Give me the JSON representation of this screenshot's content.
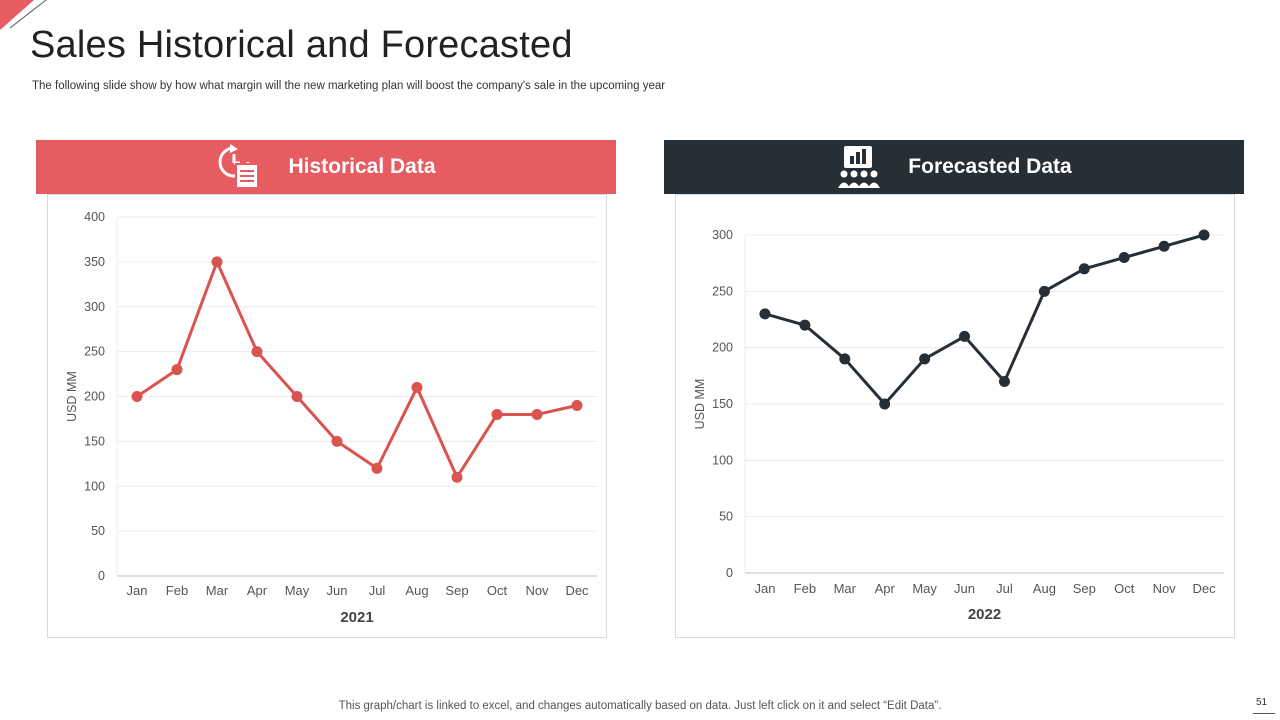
{
  "title": "Sales Historical and Forecasted",
  "subtitle": "The following slide show by how what margin will the new marketing plan will boost the company's sale in the upcoming year",
  "footer": "This graph/chart is linked to excel,  and changes automatically based on data. Just left click on it and select “Edit Data”.",
  "page_number": "51",
  "colors": {
    "historical": "#e65c61",
    "forecast": "#262f36",
    "hist_line": "#d9534f",
    "fore_line": "#262f36"
  },
  "icons": {
    "historical": "history-document-icon",
    "forecast": "presentation-audience-icon"
  },
  "panels": {
    "historical": {
      "label": "Historical Data"
    },
    "forecast": {
      "label": "Forecasted Data"
    }
  },
  "chart_data": [
    {
      "type": "line",
      "title": "",
      "xlabel": "2021",
      "ylabel": "USD MM",
      "categories": [
        "Jan",
        "Feb",
        "Mar",
        "Apr",
        "May",
        "Jun",
        "Jul",
        "Aug",
        "Sep",
        "Oct",
        "Nov",
        "Dec"
      ],
      "values": [
        200,
        230,
        350,
        250,
        200,
        150,
        120,
        210,
        110,
        180,
        180,
        190
      ],
      "ylim": [
        0,
        400
      ],
      "yticks": [
        0,
        50,
        100,
        150,
        200,
        250,
        300,
        350,
        400
      ],
      "grid": true,
      "legend": "none"
    },
    {
      "type": "line",
      "title": "",
      "xlabel": "2022",
      "ylabel": "USD MM",
      "categories": [
        "Jan",
        "Feb",
        "Mar",
        "Apr",
        "May",
        "Jun",
        "Jul",
        "Aug",
        "Sep",
        "Oct",
        "Nov",
        "Dec"
      ],
      "values": [
        230,
        220,
        190,
        150,
        190,
        210,
        170,
        250,
        270,
        280,
        290,
        300
      ],
      "ylim": [
        0,
        300
      ],
      "yticks": [
        0,
        50,
        100,
        150,
        200,
        250,
        300
      ],
      "grid": true,
      "legend": "none"
    }
  ]
}
